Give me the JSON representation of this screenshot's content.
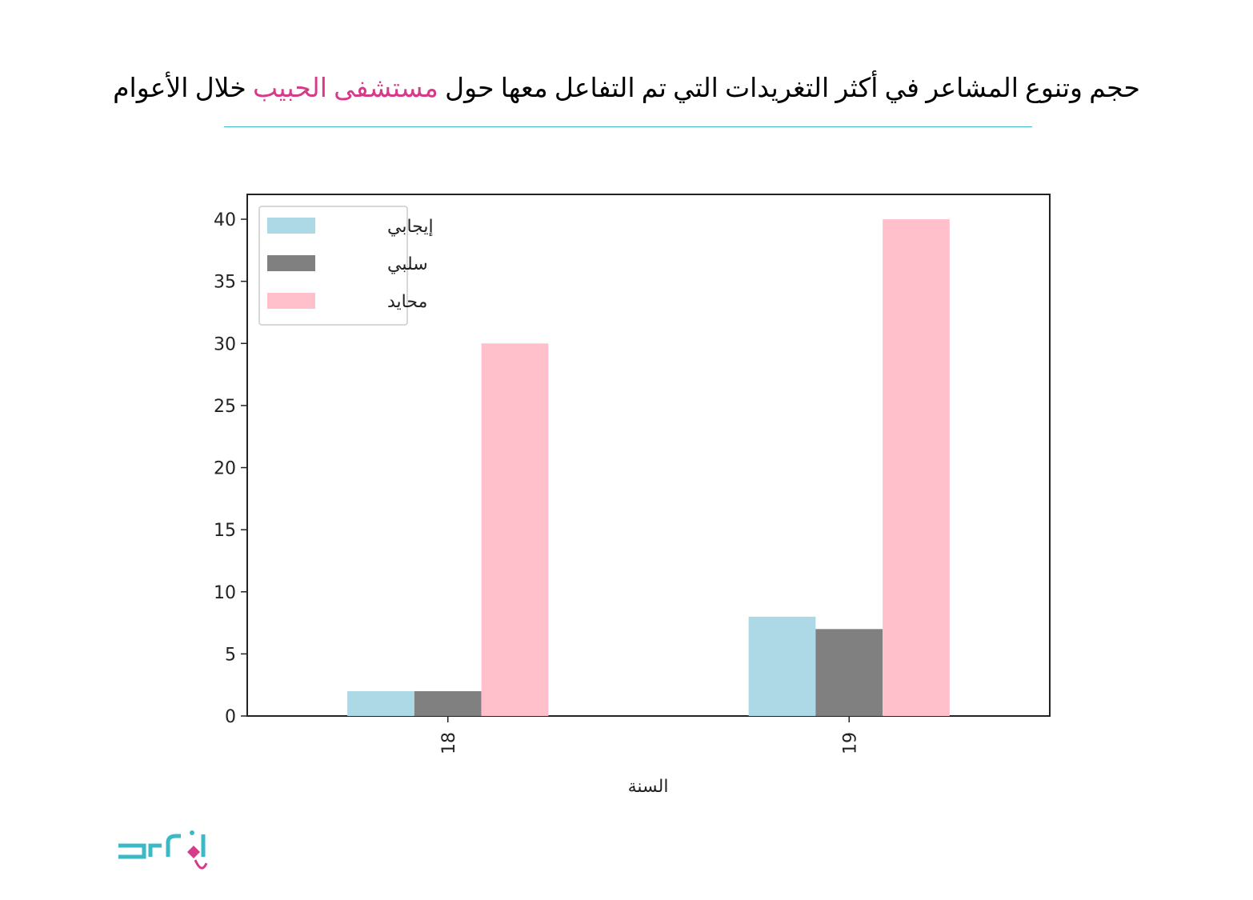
{
  "title": {
    "part1": "حجم وتنوع المشاعر في أكثر التغريدات التي تم التفاعل معها حول",
    "highlight": "مستشفى الحبيب",
    "part2": "خلال الأعوام",
    "highlight_color": "#d63a8a",
    "rule_color": "#3bb9c6"
  },
  "chart_data": {
    "type": "bar",
    "categories": [
      "18",
      "19"
    ],
    "series": [
      {
        "name": "إيجابي",
        "values": [
          2,
          8
        ],
        "color": "#add8e6"
      },
      {
        "name": "سلبي",
        "values": [
          2,
          7
        ],
        "color": "#808080"
      },
      {
        "name": "محايد",
        "values": [
          30,
          40
        ],
        "color": "#ffc0cb"
      }
    ],
    "xlabel": "السنة",
    "ylabel": "",
    "ylim": [
      0,
      42
    ],
    "yticks": [
      0,
      5,
      10,
      15,
      20,
      25,
      30,
      35,
      40
    ],
    "grid": false,
    "legend": "top-left",
    "xtick_rotation": 90
  },
  "logo": {
    "name": "abaad-logo-icon",
    "colors": [
      "#3bb9c6",
      "#d63a8a"
    ]
  }
}
